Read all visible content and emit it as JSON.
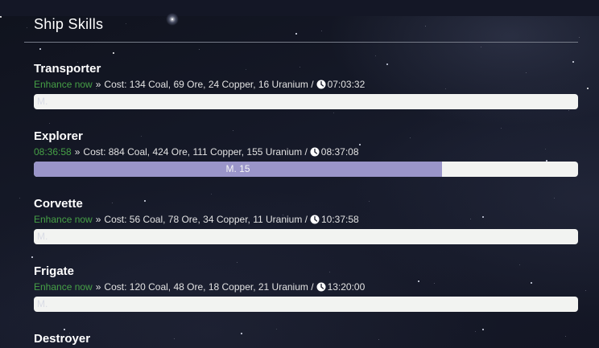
{
  "page_title": "Ship Skills",
  "info_separator": "»",
  "colors": {
    "background": "#141726",
    "accent_green": "#46a046",
    "bar_fill": "#9a95c9",
    "bar_background": "#f2f3f1",
    "divider": "#767b88"
  },
  "icons": {
    "duration": "clock-icon"
  },
  "sections": [
    {
      "name": "Transporter",
      "action": "Enhance now",
      "action_kind": "link",
      "cost": "Cost: 134 Coal, 69 Ore, 24 Copper, 16 Uranium /",
      "time": "07:03:32",
      "progress": {
        "percent": 0,
        "label": "M."
      }
    },
    {
      "name": "Explorer",
      "action": "08:36:58",
      "action_kind": "countdown",
      "cost": "Cost: 884 Coal, 424 Ore, 111 Copper, 155 Uranium /",
      "time": "08:37:08",
      "progress": {
        "percent": 75,
        "label": "M. 15"
      }
    },
    {
      "name": "Corvette",
      "action": "Enhance now",
      "action_kind": "link",
      "cost": "Cost: 56 Coal, 78 Ore, 34 Copper, 11 Uranium /",
      "time": "10:37:58",
      "progress": {
        "percent": 0,
        "label": "M."
      }
    },
    {
      "name": "Frigate",
      "action": "Enhance now",
      "action_kind": "link",
      "cost": "Cost: 120 Coal, 48 Ore, 18 Copper, 21 Uranium /",
      "time": "13:20:00",
      "progress": {
        "percent": 0,
        "label": "M."
      }
    },
    {
      "name": "Destroyer"
    }
  ]
}
